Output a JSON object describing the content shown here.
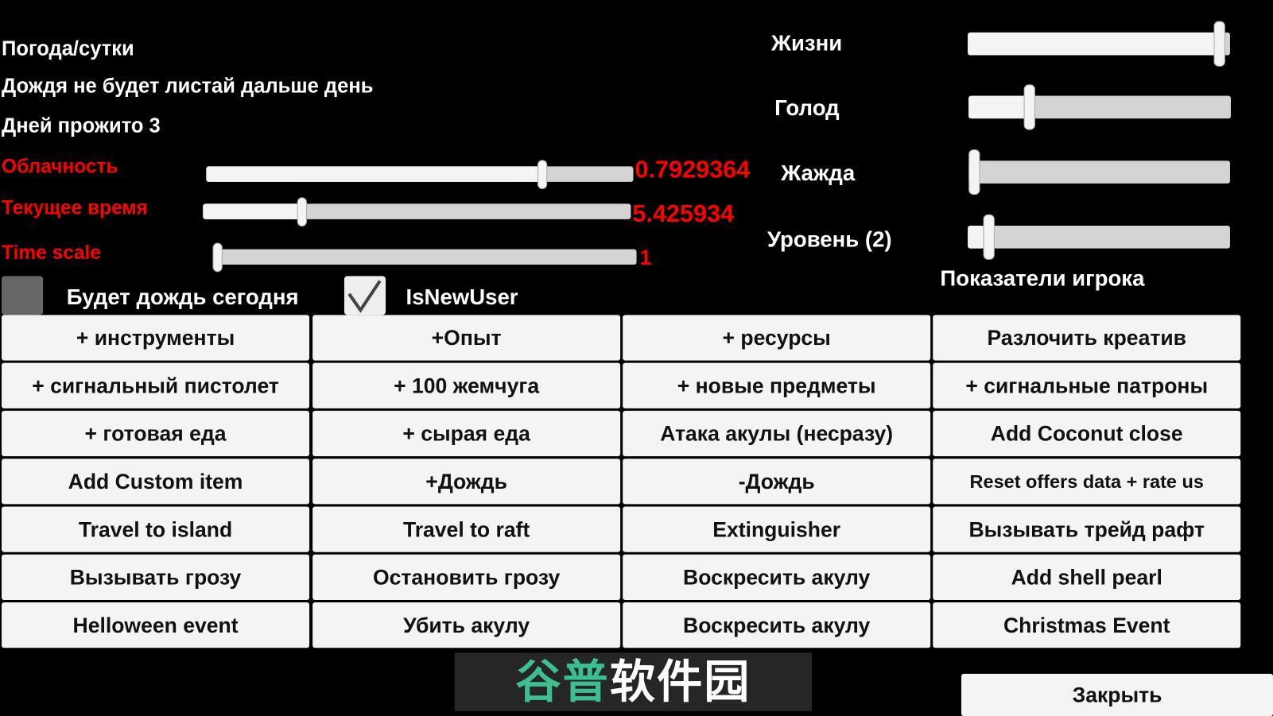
{
  "left": {
    "weather_title": "Погода/сутки",
    "rain_info": "Дождя не будет листай дальше день",
    "days_lived": "Дней прожито 3",
    "sliders": [
      {
        "label": "Облачность",
        "value_text": "0.7929364",
        "fraction": 0.7929
      },
      {
        "label": "Текущее время",
        "value_text": "5.425934",
        "fraction": 0.226
      },
      {
        "label": "Time scale",
        "value_text": "1",
        "fraction": 0.0
      }
    ],
    "rain_today": {
      "label": "Будет дождь сегодня",
      "checked": false
    },
    "is_new_user": {
      "label": "IsNewUser",
      "checked": true
    }
  },
  "right": {
    "stats": [
      {
        "label": "Жизни",
        "fraction": 0.98
      },
      {
        "label": "Голод",
        "fraction": 0.22
      },
      {
        "label": "Жажда",
        "fraction": 0.0
      },
      {
        "label": "Уровень (2)",
        "fraction": 0.06
      }
    ],
    "section_title": "Показатели игрока"
  },
  "buttons": [
    [
      "+ инструменты",
      "+Опыт",
      "+ ресурсы",
      "Разлочить креатив"
    ],
    [
      "+ сигнальный пистолет",
      "+ 100 жемчуга",
      "+ новые предметы",
      "+ сигнальные патроны"
    ],
    [
      "+ готовая еда",
      "+ сырая еда",
      "Атака акулы (несразу)",
      "Add Coconut close"
    ],
    [
      "Add Custom item",
      "+Дождь",
      "-Дождь",
      "Reset offers data + rate us"
    ],
    [
      "Travel to island",
      "Travel to raft",
      "Extinguisher",
      "Вызывать трейд рафт"
    ],
    [
      "Вызывать грозу",
      "Остановить грозу",
      "Воскресить акулу",
      "Add shell pearl"
    ],
    [
      "Helloween event",
      "Убить акулу",
      "Воскресить акулу",
      "Christmas Event"
    ]
  ],
  "close_label": "Закрыть",
  "watermark": {
    "green": "谷普",
    "white": "软件园"
  },
  "colors": {
    "accent_red": "#ff0000",
    "button_bg": "#f4f4f4",
    "track_bg": "#d4d4d4"
  }
}
